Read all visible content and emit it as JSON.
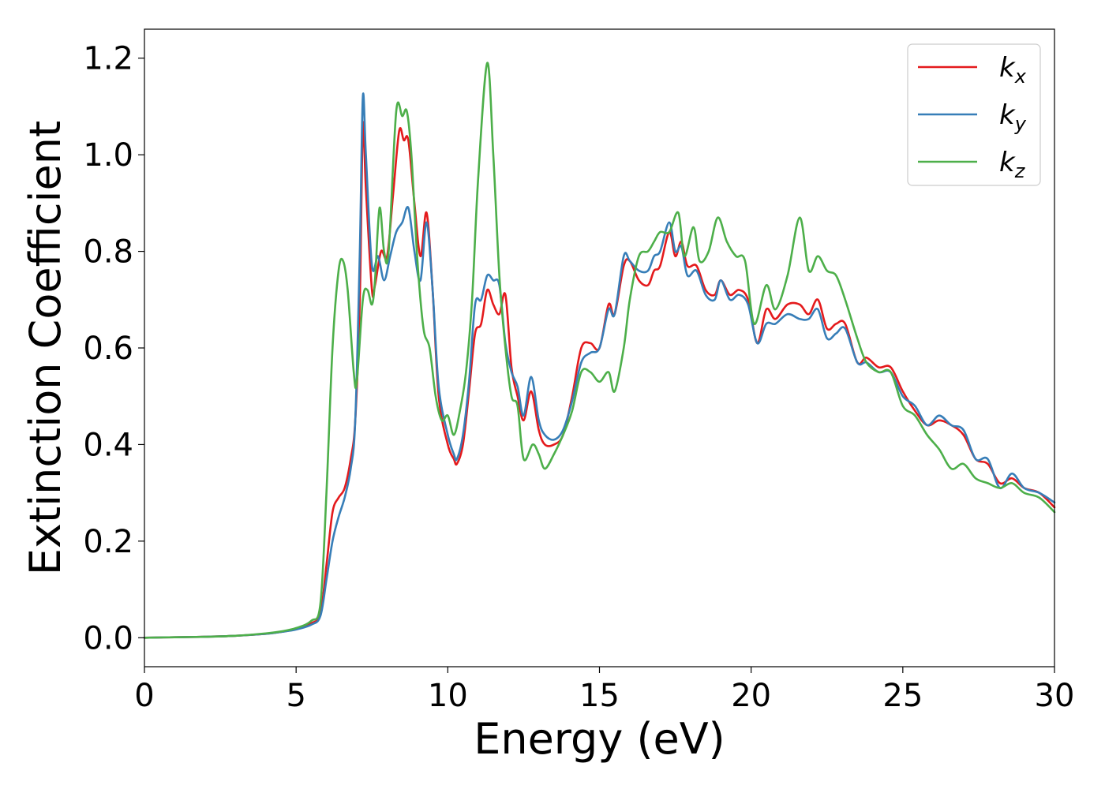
{
  "chart_data": {
    "type": "line",
    "title": "",
    "xlabel": "Energy (eV)",
    "ylabel": "Extinction Coefficient",
    "xlim": [
      0,
      30
    ],
    "ylim": [
      -0.06,
      1.26
    ],
    "xticks": [
      0,
      5,
      10,
      15,
      20,
      25,
      30
    ],
    "yticks": [
      0.0,
      0.2,
      0.4,
      0.6,
      0.8,
      1.0,
      1.2
    ],
    "xtick_labels": [
      "0",
      "5",
      "10",
      "15",
      "20",
      "25",
      "30"
    ],
    "ytick_labels": [
      "0.0",
      "0.2",
      "0.4",
      "0.6",
      "0.8",
      "1.0",
      "1.2"
    ],
    "grid": false,
    "legend": "top-right",
    "series": [
      {
        "name": "k_x",
        "legend_main": "k",
        "legend_sub": "x",
        "color": "#e41a1c",
        "points": [
          [
            0,
            0
          ],
          [
            1,
            0.001
          ],
          [
            2,
            0.002
          ],
          [
            3,
            0.004
          ],
          [
            4,
            0.008
          ],
          [
            4.5,
            0.012
          ],
          [
            5,
            0.018
          ],
          [
            5.5,
            0.03
          ],
          [
            5.8,
            0.05
          ],
          [
            6.0,
            0.15
          ],
          [
            6.2,
            0.26
          ],
          [
            6.4,
            0.29
          ],
          [
            6.6,
            0.31
          ],
          [
            6.8,
            0.37
          ],
          [
            6.95,
            0.45
          ],
          [
            7.1,
            0.7
          ],
          [
            7.2,
            1.06
          ],
          [
            7.3,
            0.93
          ],
          [
            7.5,
            0.72
          ],
          [
            7.6,
            0.73
          ],
          [
            7.8,
            0.8
          ],
          [
            8.0,
            0.79
          ],
          [
            8.2,
            0.92
          ],
          [
            8.4,
            1.05
          ],
          [
            8.55,
            1.03
          ],
          [
            8.7,
            1.03
          ],
          [
            8.9,
            0.9
          ],
          [
            9.1,
            0.79
          ],
          [
            9.3,
            0.88
          ],
          [
            9.5,
            0.72
          ],
          [
            9.7,
            0.5
          ],
          [
            10.0,
            0.4
          ],
          [
            10.2,
            0.37
          ],
          [
            10.3,
            0.36
          ],
          [
            10.5,
            0.4
          ],
          [
            10.7,
            0.51
          ],
          [
            10.9,
            0.63
          ],
          [
            11.1,
            0.65
          ],
          [
            11.3,
            0.72
          ],
          [
            11.5,
            0.69
          ],
          [
            11.7,
            0.67
          ],
          [
            11.9,
            0.71
          ],
          [
            12.1,
            0.56
          ],
          [
            12.3,
            0.5
          ],
          [
            12.5,
            0.45
          ],
          [
            12.75,
            0.51
          ],
          [
            13.0,
            0.43
          ],
          [
            13.2,
            0.4
          ],
          [
            13.5,
            0.4
          ],
          [
            13.8,
            0.42
          ],
          [
            14.1,
            0.5
          ],
          [
            14.4,
            0.6
          ],
          [
            14.7,
            0.61
          ],
          [
            15.0,
            0.6
          ],
          [
            15.3,
            0.69
          ],
          [
            15.5,
            0.67
          ],
          [
            15.8,
            0.77
          ],
          [
            16.0,
            0.78
          ],
          [
            16.3,
            0.74
          ],
          [
            16.6,
            0.73
          ],
          [
            16.8,
            0.76
          ],
          [
            17.0,
            0.77
          ],
          [
            17.3,
            0.84
          ],
          [
            17.5,
            0.79
          ],
          [
            17.7,
            0.82
          ],
          [
            17.9,
            0.77
          ],
          [
            18.2,
            0.77
          ],
          [
            18.5,
            0.72
          ],
          [
            18.8,
            0.71
          ],
          [
            19.0,
            0.74
          ],
          [
            19.3,
            0.71
          ],
          [
            19.6,
            0.72
          ],
          [
            19.9,
            0.7
          ],
          [
            20.2,
            0.61
          ],
          [
            20.5,
            0.68
          ],
          [
            20.8,
            0.66
          ],
          [
            21.2,
            0.69
          ],
          [
            21.6,
            0.69
          ],
          [
            21.9,
            0.67
          ],
          [
            22.2,
            0.7
          ],
          [
            22.5,
            0.64
          ],
          [
            22.8,
            0.65
          ],
          [
            23.1,
            0.65
          ],
          [
            23.5,
            0.57
          ],
          [
            23.8,
            0.58
          ],
          [
            24.2,
            0.56
          ],
          [
            24.6,
            0.56
          ],
          [
            25.0,
            0.51
          ],
          [
            25.4,
            0.47
          ],
          [
            25.8,
            0.44
          ],
          [
            26.2,
            0.45
          ],
          [
            26.6,
            0.44
          ],
          [
            27.0,
            0.42
          ],
          [
            27.4,
            0.37
          ],
          [
            27.8,
            0.36
          ],
          [
            28.2,
            0.32
          ],
          [
            28.6,
            0.33
          ],
          [
            29.0,
            0.31
          ],
          [
            29.5,
            0.3
          ],
          [
            30.0,
            0.27
          ]
        ]
      },
      {
        "name": "k_y",
        "legend_main": "k",
        "legend_sub": "y",
        "color": "#377eb8",
        "points": [
          [
            0,
            0
          ],
          [
            1,
            0.001
          ],
          [
            2,
            0.002
          ],
          [
            3,
            0.004
          ],
          [
            4,
            0.008
          ],
          [
            4.5,
            0.012
          ],
          [
            5,
            0.017
          ],
          [
            5.5,
            0.027
          ],
          [
            5.8,
            0.045
          ],
          [
            6.0,
            0.12
          ],
          [
            6.2,
            0.2
          ],
          [
            6.4,
            0.25
          ],
          [
            6.6,
            0.29
          ],
          [
            6.8,
            0.35
          ],
          [
            6.95,
            0.45
          ],
          [
            7.1,
            0.8
          ],
          [
            7.2,
            1.12
          ],
          [
            7.3,
            1.0
          ],
          [
            7.5,
            0.77
          ],
          [
            7.7,
            0.79
          ],
          [
            7.9,
            0.74
          ],
          [
            8.1,
            0.79
          ],
          [
            8.3,
            0.84
          ],
          [
            8.5,
            0.86
          ],
          [
            8.7,
            0.89
          ],
          [
            8.9,
            0.8
          ],
          [
            9.1,
            0.74
          ],
          [
            9.3,
            0.86
          ],
          [
            9.5,
            0.72
          ],
          [
            9.7,
            0.52
          ],
          [
            10.0,
            0.42
          ],
          [
            10.2,
            0.38
          ],
          [
            10.3,
            0.37
          ],
          [
            10.5,
            0.42
          ],
          [
            10.7,
            0.53
          ],
          [
            10.9,
            0.69
          ],
          [
            11.1,
            0.7
          ],
          [
            11.3,
            0.75
          ],
          [
            11.5,
            0.74
          ],
          [
            11.7,
            0.73
          ],
          [
            11.9,
            0.61
          ],
          [
            12.1,
            0.55
          ],
          [
            12.3,
            0.52
          ],
          [
            12.5,
            0.46
          ],
          [
            12.75,
            0.54
          ],
          [
            13.0,
            0.45
          ],
          [
            13.2,
            0.42
          ],
          [
            13.5,
            0.41
          ],
          [
            13.8,
            0.43
          ],
          [
            14.1,
            0.49
          ],
          [
            14.4,
            0.57
          ],
          [
            14.7,
            0.59
          ],
          [
            15.0,
            0.6
          ],
          [
            15.3,
            0.68
          ],
          [
            15.5,
            0.67
          ],
          [
            15.8,
            0.79
          ],
          [
            16.0,
            0.78
          ],
          [
            16.3,
            0.76
          ],
          [
            16.6,
            0.76
          ],
          [
            16.8,
            0.79
          ],
          [
            17.0,
            0.8
          ],
          [
            17.3,
            0.86
          ],
          [
            17.5,
            0.8
          ],
          [
            17.7,
            0.81
          ],
          [
            17.9,
            0.75
          ],
          [
            18.2,
            0.76
          ],
          [
            18.5,
            0.71
          ],
          [
            18.8,
            0.7
          ],
          [
            19.0,
            0.74
          ],
          [
            19.3,
            0.7
          ],
          [
            19.6,
            0.71
          ],
          [
            19.9,
            0.69
          ],
          [
            20.2,
            0.61
          ],
          [
            20.5,
            0.65
          ],
          [
            20.8,
            0.65
          ],
          [
            21.2,
            0.67
          ],
          [
            21.6,
            0.66
          ],
          [
            21.9,
            0.66
          ],
          [
            22.2,
            0.68
          ],
          [
            22.5,
            0.62
          ],
          [
            22.8,
            0.63
          ],
          [
            23.1,
            0.64
          ],
          [
            23.5,
            0.57
          ],
          [
            23.8,
            0.57
          ],
          [
            24.2,
            0.55
          ],
          [
            24.6,
            0.55
          ],
          [
            25.0,
            0.5
          ],
          [
            25.4,
            0.48
          ],
          [
            25.8,
            0.44
          ],
          [
            26.2,
            0.46
          ],
          [
            26.6,
            0.44
          ],
          [
            27.0,
            0.43
          ],
          [
            27.4,
            0.37
          ],
          [
            27.8,
            0.37
          ],
          [
            28.2,
            0.31
          ],
          [
            28.6,
            0.34
          ],
          [
            29.0,
            0.31
          ],
          [
            29.5,
            0.3
          ],
          [
            30.0,
            0.28
          ]
        ]
      },
      {
        "name": "k_z",
        "legend_main": "k",
        "legend_sub": "z",
        "color": "#4daf4a",
        "points": [
          [
            0,
            0
          ],
          [
            1,
            0.001
          ],
          [
            2,
            0.002
          ],
          [
            3,
            0.004
          ],
          [
            4,
            0.009
          ],
          [
            4.5,
            0.013
          ],
          [
            5,
            0.02
          ],
          [
            5.5,
            0.035
          ],
          [
            5.8,
            0.07
          ],
          [
            6.0,
            0.3
          ],
          [
            6.2,
            0.6
          ],
          [
            6.4,
            0.76
          ],
          [
            6.55,
            0.78
          ],
          [
            6.7,
            0.72
          ],
          [
            6.9,
            0.55
          ],
          [
            7.0,
            0.53
          ],
          [
            7.2,
            0.7
          ],
          [
            7.35,
            0.72
          ],
          [
            7.5,
            0.69
          ],
          [
            7.6,
            0.74
          ],
          [
            7.75,
            0.89
          ],
          [
            7.9,
            0.8
          ],
          [
            8.05,
            0.8
          ],
          [
            8.3,
            1.09
          ],
          [
            8.5,
            1.08
          ],
          [
            8.65,
            1.09
          ],
          [
            8.8,
            1.0
          ],
          [
            9.0,
            0.78
          ],
          [
            9.2,
            0.64
          ],
          [
            9.4,
            0.6
          ],
          [
            9.6,
            0.5
          ],
          [
            9.8,
            0.45
          ],
          [
            10.0,
            0.46
          ],
          [
            10.2,
            0.42
          ],
          [
            10.4,
            0.47
          ],
          [
            10.6,
            0.55
          ],
          [
            10.8,
            0.7
          ],
          [
            11.0,
            0.95
          ],
          [
            11.3,
            1.19
          ],
          [
            11.5,
            1.0
          ],
          [
            11.7,
            0.75
          ],
          [
            11.9,
            0.6
          ],
          [
            12.1,
            0.5
          ],
          [
            12.3,
            0.48
          ],
          [
            12.5,
            0.37
          ],
          [
            12.8,
            0.4
          ],
          [
            13.0,
            0.38
          ],
          [
            13.2,
            0.35
          ],
          [
            13.5,
            0.38
          ],
          [
            13.8,
            0.42
          ],
          [
            14.1,
            0.47
          ],
          [
            14.4,
            0.55
          ],
          [
            14.7,
            0.55
          ],
          [
            15.0,
            0.53
          ],
          [
            15.3,
            0.55
          ],
          [
            15.5,
            0.51
          ],
          [
            15.8,
            0.6
          ],
          [
            16.0,
            0.7
          ],
          [
            16.3,
            0.79
          ],
          [
            16.6,
            0.8
          ],
          [
            16.8,
            0.82
          ],
          [
            17.0,
            0.84
          ],
          [
            17.3,
            0.84
          ],
          [
            17.6,
            0.88
          ],
          [
            17.8,
            0.79
          ],
          [
            18.1,
            0.85
          ],
          [
            18.3,
            0.78
          ],
          [
            18.6,
            0.8
          ],
          [
            18.9,
            0.87
          ],
          [
            19.2,
            0.82
          ],
          [
            19.5,
            0.79
          ],
          [
            19.8,
            0.78
          ],
          [
            20.1,
            0.65
          ],
          [
            20.5,
            0.73
          ],
          [
            20.8,
            0.68
          ],
          [
            21.2,
            0.75
          ],
          [
            21.6,
            0.87
          ],
          [
            21.9,
            0.76
          ],
          [
            22.2,
            0.79
          ],
          [
            22.5,
            0.76
          ],
          [
            22.8,
            0.75
          ],
          [
            23.1,
            0.7
          ],
          [
            23.5,
            0.62
          ],
          [
            23.8,
            0.57
          ],
          [
            24.2,
            0.55
          ],
          [
            24.6,
            0.55
          ],
          [
            25.0,
            0.48
          ],
          [
            25.4,
            0.46
          ],
          [
            25.8,
            0.42
          ],
          [
            26.2,
            0.39
          ],
          [
            26.6,
            0.35
          ],
          [
            27.0,
            0.36
          ],
          [
            27.4,
            0.33
          ],
          [
            27.8,
            0.32
          ],
          [
            28.2,
            0.31
          ],
          [
            28.6,
            0.32
          ],
          [
            29.0,
            0.3
          ],
          [
            29.5,
            0.29
          ],
          [
            30.0,
            0.26
          ]
        ]
      }
    ]
  }
}
